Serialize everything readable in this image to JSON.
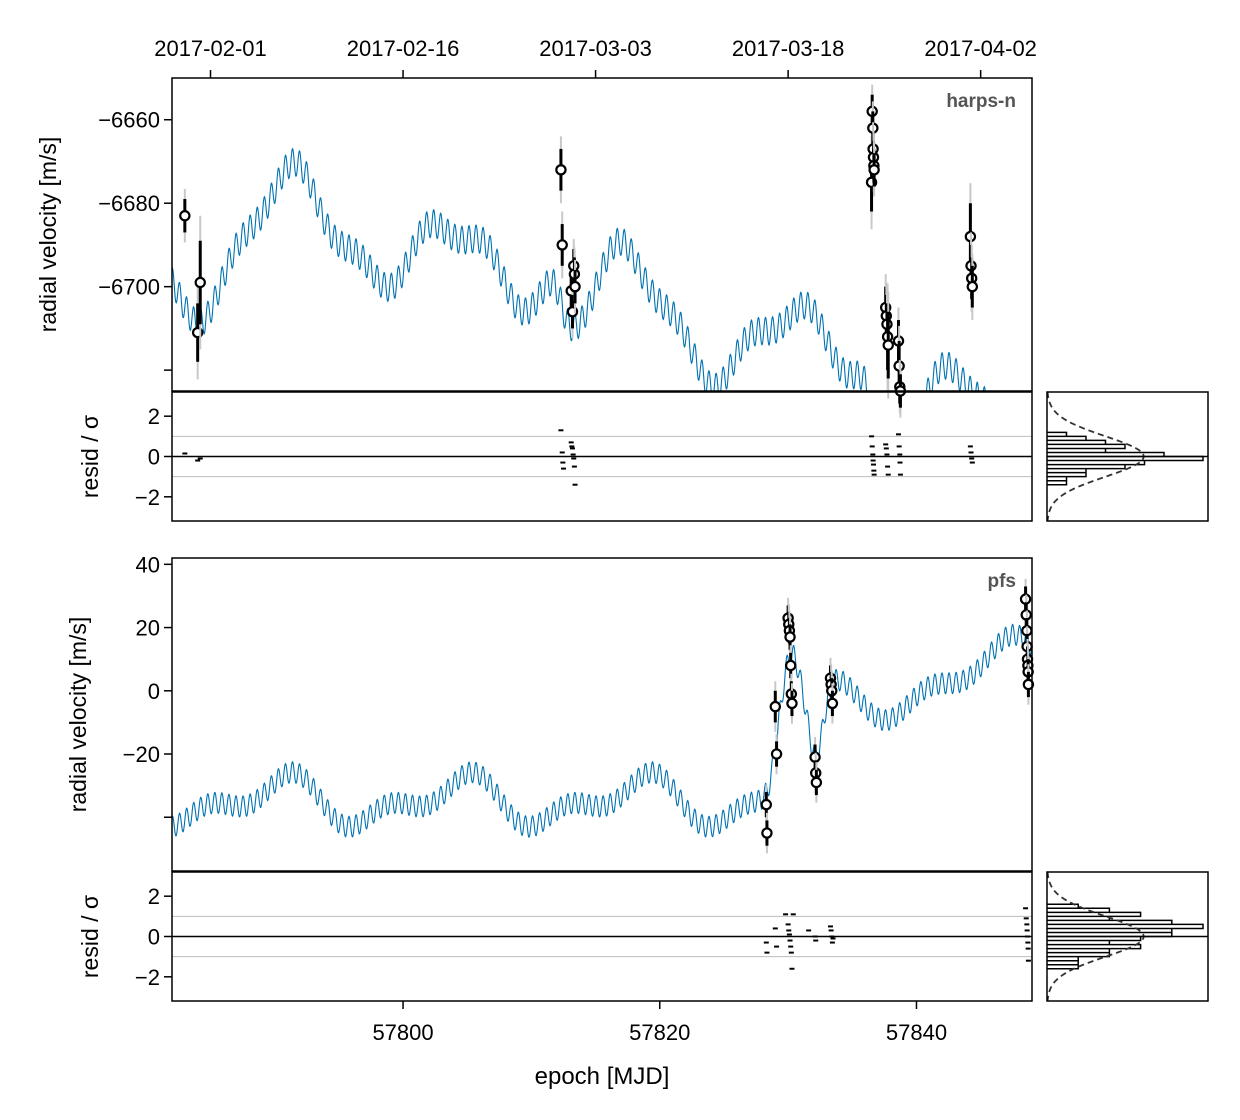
{
  "figure": {
    "top_axis_label": "",
    "xlabel": "epoch [MJD]",
    "resid_ylabel": "resid / σ"
  },
  "chart_data": {
    "type": "scatter",
    "x_axis": {
      "label": "epoch [MJD]",
      "range": [
        57782.0,
        57849.0
      ],
      "ticks": [
        57800,
        57820,
        57840
      ]
    },
    "top_date_axis": {
      "ticks": [
        {
          "mjd": 57785,
          "label": "2017-02-01"
        },
        {
          "mjd": 57800,
          "label": "2017-02-16"
        },
        {
          "mjd": 57815,
          "label": "2017-03-03"
        },
        {
          "mjd": 57830,
          "label": "2017-03-18"
        },
        {
          "mjd": 57845,
          "label": "2017-04-02"
        }
      ]
    },
    "panels": [
      {
        "instrument": "harps-n",
        "ylabel": "radial velocity [m/s]",
        "ylim": [
          -6725,
          -6650
        ],
        "yticks": [
          -6660,
          -6680,
          -6700
        ],
        "model_color": "#0072b2",
        "model": {
          "components": [
            {
              "amp": 11,
              "period": 13.1,
              "phase": 4.6
            },
            {
              "amp": 7,
              "period": 24.5,
              "phase": 2.15
            },
            {
              "amp": 3,
              "period": 5.0,
              "phase": 5.7
            },
            {
              "amp": 3.3,
              "period": 0.55,
              "phase": 0.0
            }
          ],
          "steps": [
            {
              "at": 57812.3,
              "delta": -20
            },
            {
              "at": 57836.6,
              "delta": -28
            }
          ],
          "offset": -6689.9
        },
        "points": [
          {
            "x": 57783.0,
            "y": -6683,
            "err": 4
          },
          {
            "x": 57784.0,
            "y": -6711,
            "err": 7
          },
          {
            "x": 57784.2,
            "y": -6699,
            "err": 10
          },
          {
            "x": 57812.3,
            "y": -6672,
            "err": 5
          },
          {
            "x": 57812.4,
            "y": -6690,
            "err": 5
          },
          {
            "x": 57813.1,
            "y": -6701,
            "err": 4
          },
          {
            "x": 57813.2,
            "y": -6706,
            "err": 4
          },
          {
            "x": 57813.3,
            "y": -6695,
            "err": 4
          },
          {
            "x": 57813.35,
            "y": -6697,
            "err": 4
          },
          {
            "x": 57813.4,
            "y": -6700,
            "err": 4
          },
          {
            "x": 57836.5,
            "y": -6675,
            "err": 7
          },
          {
            "x": 57836.55,
            "y": -6658,
            "err": 4
          },
          {
            "x": 57836.6,
            "y": -6662,
            "err": 4
          },
          {
            "x": 57836.62,
            "y": -6667,
            "err": 4
          },
          {
            "x": 57836.65,
            "y": -6669,
            "err": 4
          },
          {
            "x": 57836.68,
            "y": -6671,
            "err": 4
          },
          {
            "x": 57836.7,
            "y": -6672,
            "err": 4
          },
          {
            "x": 57837.6,
            "y": -6705,
            "err": 5
          },
          {
            "x": 57837.65,
            "y": -6707,
            "err": 5
          },
          {
            "x": 57837.7,
            "y": -6709,
            "err": 5
          },
          {
            "x": 57837.75,
            "y": -6712,
            "err": 8
          },
          {
            "x": 57837.8,
            "y": -6714,
            "err": 8
          },
          {
            "x": 57838.6,
            "y": -6713,
            "err": 5
          },
          {
            "x": 57838.65,
            "y": -6719,
            "err": 6
          },
          {
            "x": 57838.7,
            "y": -6724,
            "err": 4
          },
          {
            "x": 57838.75,
            "y": -6725,
            "err": 4
          },
          {
            "x": 57844.2,
            "y": -6688,
            "err": 8
          },
          {
            "x": 57844.25,
            "y": -6695,
            "err": 5
          },
          {
            "x": 57844.3,
            "y": -6698,
            "err": 5
          },
          {
            "x": 57844.35,
            "y": -6700,
            "err": 5
          }
        ],
        "resid": {
          "ylim": [
            -3.2,
            3.2
          ],
          "yticks": [
            2,
            0,
            -2
          ],
          "ref_lines": [
            1,
            -1
          ],
          "points": [
            {
              "x": 57783.0,
              "y": 0.15
            },
            {
              "x": 57784.0,
              "y": -0.2
            },
            {
              "x": 57784.2,
              "y": -0.1
            },
            {
              "x": 57812.3,
              "y": 1.3
            },
            {
              "x": 57812.4,
              "y": 0.2
            },
            {
              "x": 57812.45,
              "y": -0.3
            },
            {
              "x": 57812.5,
              "y": -0.6
            },
            {
              "x": 57813.1,
              "y": 0.7
            },
            {
              "x": 57813.15,
              "y": 0.5
            },
            {
              "x": 57813.2,
              "y": 0.4
            },
            {
              "x": 57813.25,
              "y": 0.1
            },
            {
              "x": 57813.3,
              "y": -0.1
            },
            {
              "x": 57813.35,
              "y": -0.5
            },
            {
              "x": 57813.4,
              "y": -1.4
            },
            {
              "x": 57836.5,
              "y": 1.0
            },
            {
              "x": 57836.55,
              "y": 0.5
            },
            {
              "x": 57836.6,
              "y": 0.1
            },
            {
              "x": 57836.62,
              "y": -0.2
            },
            {
              "x": 57836.65,
              "y": -0.4
            },
            {
              "x": 57836.68,
              "y": -0.7
            },
            {
              "x": 57836.7,
              "y": -0.9
            },
            {
              "x": 57837.6,
              "y": 0.6
            },
            {
              "x": 57837.65,
              "y": 0.4
            },
            {
              "x": 57837.7,
              "y": 0.1
            },
            {
              "x": 57837.75,
              "y": -0.5
            },
            {
              "x": 57837.8,
              "y": -0.9
            },
            {
              "x": 57838.6,
              "y": 1.1
            },
            {
              "x": 57838.65,
              "y": 0.5
            },
            {
              "x": 57838.7,
              "y": 0.1
            },
            {
              "x": 57838.72,
              "y": -0.3
            },
            {
              "x": 57838.75,
              "y": -0.9
            },
            {
              "x": 57844.2,
              "y": 0.5
            },
            {
              "x": 57844.25,
              "y": 0.2
            },
            {
              "x": 57844.3,
              "y": -0.1
            },
            {
              "x": 57844.35,
              "y": -0.3
            }
          ]
        },
        "histogram": {
          "bins": [
            {
              "lo": 1.0,
              "hi": 1.2,
              "count": 1
            },
            {
              "lo": 0.8,
              "hi": 1.0,
              "count": 2
            },
            {
              "lo": 0.6,
              "hi": 0.8,
              "count": 3
            },
            {
              "lo": 0.4,
              "hi": 0.6,
              "count": 4
            },
            {
              "lo": 0.2,
              "hi": 0.4,
              "count": 3
            },
            {
              "lo": 0.0,
              "hi": 0.2,
              "count": 6
            },
            {
              "lo": -0.2,
              "hi": 0.0,
              "count": 8
            },
            {
              "lo": -0.4,
              "hi": -0.2,
              "count": 5
            },
            {
              "lo": -0.6,
              "hi": -0.4,
              "count": 4
            },
            {
              "lo": -0.8,
              "hi": -0.6,
              "count": 2
            },
            {
              "lo": -1.0,
              "hi": -0.8,
              "count": 2
            },
            {
              "lo": -1.2,
              "hi": -1.0,
              "count": 1
            },
            {
              "lo": -1.4,
              "hi": -1.2,
              "count": 1
            }
          ]
        }
      },
      {
        "instrument": "pfs",
        "ylabel": "radial velocity [m/s]",
        "ylim": [
          -57,
          42
        ],
        "yticks": [
          40,
          20,
          0,
          -20
        ],
        "model_color": "#0072b2",
        "model": {
          "components": [
            {
              "amp": 6,
              "period": 14.0,
              "phase": -4.0
            },
            {
              "amp": 4,
              "period": 7.0,
              "phase": 1.8
            },
            {
              "amp": 3.3,
              "period": 0.55,
              "phase": 0.0
            }
          ],
          "steps": [
            {
              "at": 57829.0,
              "delta": 30
            }
          ],
          "offset": -35,
          "slope_after": {
            "at": 57834,
            "rate": 1.0
          },
          "bumps": [
            {
              "at": 57830.2,
              "amp": 18,
              "width": 0.9
            },
            {
              "at": 57832.2,
              "amp": -22,
              "width": 0.8
            }
          ]
        },
        "points": [
          {
            "x": 57828.3,
            "y": -36,
            "err": 4
          },
          {
            "x": 57828.35,
            "y": -45,
            "err": 4
          },
          {
            "x": 57829.0,
            "y": -5,
            "err": 5
          },
          {
            "x": 57829.1,
            "y": -20,
            "err": 4
          },
          {
            "x": 57830.0,
            "y": 23,
            "err": 4
          },
          {
            "x": 57830.05,
            "y": 21,
            "err": 4
          },
          {
            "x": 57830.1,
            "y": 19,
            "err": 4
          },
          {
            "x": 57830.15,
            "y": 17,
            "err": 4
          },
          {
            "x": 57830.2,
            "y": 8,
            "err": 4
          },
          {
            "x": 57830.25,
            "y": -1,
            "err": 4
          },
          {
            "x": 57830.3,
            "y": -4,
            "err": 4
          },
          {
            "x": 57832.1,
            "y": -21,
            "err": 4
          },
          {
            "x": 57832.15,
            "y": -26,
            "err": 4
          },
          {
            "x": 57832.2,
            "y": -29,
            "err": 4
          },
          {
            "x": 57833.3,
            "y": 4,
            "err": 4
          },
          {
            "x": 57833.35,
            "y": 2,
            "err": 4
          },
          {
            "x": 57833.4,
            "y": 0,
            "err": 4
          },
          {
            "x": 57833.45,
            "y": -4,
            "err": 4
          },
          {
            "x": 57848.5,
            "y": 29,
            "err": 4
          },
          {
            "x": 57848.55,
            "y": 24,
            "err": 4
          },
          {
            "x": 57848.6,
            "y": 19,
            "err": 4
          },
          {
            "x": 57848.62,
            "y": 14,
            "err": 4
          },
          {
            "x": 57848.65,
            "y": 10,
            "err": 4
          },
          {
            "x": 57848.68,
            "y": 8,
            "err": 4
          },
          {
            "x": 57848.7,
            "y": 6,
            "err": 4
          },
          {
            "x": 57848.72,
            "y": 2,
            "err": 4
          }
        ],
        "resid": {
          "ylim": [
            -3.2,
            3.2
          ],
          "yticks": [
            2,
            0,
            -2
          ],
          "ref_lines": [
            1,
            -1
          ],
          "points": [
            {
              "x": 57828.3,
              "y": -0.3
            },
            {
              "x": 57828.35,
              "y": -0.8
            },
            {
              "x": 57829.0,
              "y": 0.4
            },
            {
              "x": 57829.1,
              "y": -0.5
            },
            {
              "x": 57829.8,
              "y": 1.1
            },
            {
              "x": 57830.0,
              "y": 0.6
            },
            {
              "x": 57830.05,
              "y": 0.3
            },
            {
              "x": 57830.1,
              "y": 0.1
            },
            {
              "x": 57830.15,
              "y": -0.2
            },
            {
              "x": 57830.2,
              "y": -0.5
            },
            {
              "x": 57830.25,
              "y": -0.8
            },
            {
              "x": 57830.3,
              "y": -1.6
            },
            {
              "x": 57830.4,
              "y": 1.1
            },
            {
              "x": 57831.6,
              "y": 0.3
            },
            {
              "x": 57832.1,
              "y": 0.0
            },
            {
              "x": 57832.15,
              "y": -0.2
            },
            {
              "x": 57833.3,
              "y": 0.5
            },
            {
              "x": 57833.35,
              "y": 0.3
            },
            {
              "x": 57833.4,
              "y": 0.0
            },
            {
              "x": 57833.45,
              "y": -0.3
            },
            {
              "x": 57833.5,
              "y": -0.1
            },
            {
              "x": 57848.5,
              "y": 1.4
            },
            {
              "x": 57848.55,
              "y": 0.9
            },
            {
              "x": 57848.6,
              "y": 0.6
            },
            {
              "x": 57848.62,
              "y": 0.3
            },
            {
              "x": 57848.65,
              "y": 0.0
            },
            {
              "x": 57848.68,
              "y": -0.3
            },
            {
              "x": 57848.7,
              "y": -0.6
            },
            {
              "x": 57848.72,
              "y": -1.2
            }
          ]
        },
        "histogram": {
          "bins": [
            {
              "lo": 1.4,
              "hi": 1.6,
              "count": 1
            },
            {
              "lo": 1.2,
              "hi": 1.4,
              "count": 2
            },
            {
              "lo": 1.0,
              "hi": 1.2,
              "count": 3
            },
            {
              "lo": 0.8,
              "hi": 1.0,
              "count": 2
            },
            {
              "lo": 0.6,
              "hi": 0.8,
              "count": 4
            },
            {
              "lo": 0.4,
              "hi": 0.6,
              "count": 5
            },
            {
              "lo": 0.2,
              "hi": 0.4,
              "count": 4
            },
            {
              "lo": 0.0,
              "hi": 0.2,
              "count": 4
            },
            {
              "lo": -0.2,
              "hi": 0.0,
              "count": 3
            },
            {
              "lo": -0.4,
              "hi": -0.2,
              "count": 2
            },
            {
              "lo": -0.6,
              "hi": -0.4,
              "count": 3
            },
            {
              "lo": -0.8,
              "hi": -0.6,
              "count": 2
            },
            {
              "lo": -1.0,
              "hi": -0.8,
              "count": 2
            },
            {
              "lo": -1.2,
              "hi": -1.0,
              "count": 1
            },
            {
              "lo": -1.4,
              "hi": -1.2,
              "count": 1
            },
            {
              "lo": -1.6,
              "hi": -1.4,
              "count": 1
            }
          ]
        }
      }
    ]
  }
}
